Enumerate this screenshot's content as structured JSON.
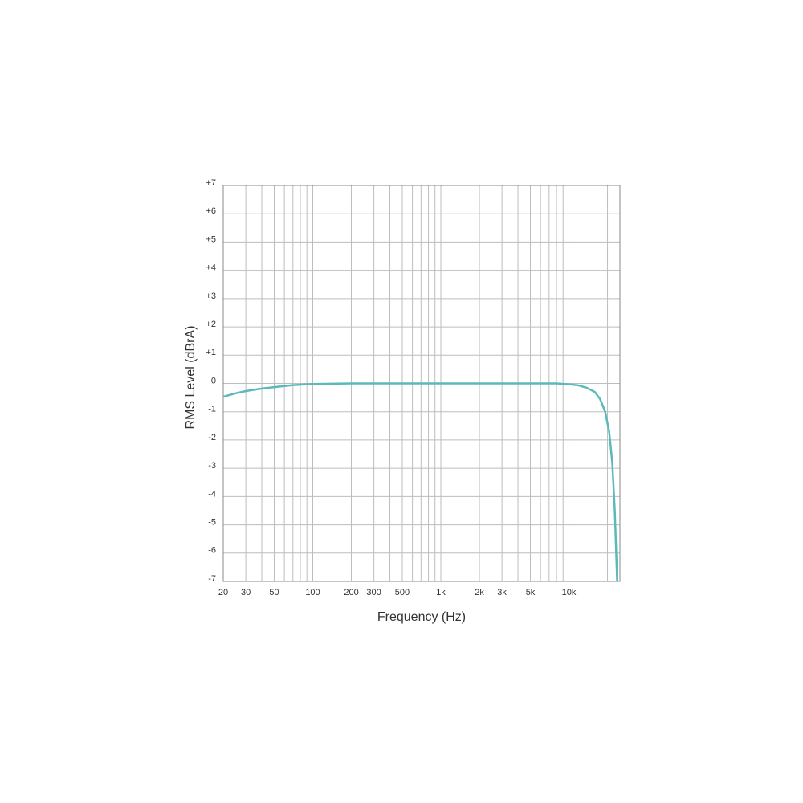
{
  "chart_data": {
    "type": "line",
    "xlabel": "Frequency (Hz)",
    "ylabel": "RMS Level (dBrA)",
    "xscale": "log",
    "xlim": [
      20,
      25000
    ],
    "ylim": [
      -7,
      7
    ],
    "xticks": [
      20,
      30,
      50,
      100,
      200,
      300,
      500,
      {
        "value": 1000,
        "label": "1k"
      },
      {
        "value": 2000,
        "label": "2k"
      },
      {
        "value": 3000,
        "label": "3k"
      },
      {
        "value": 5000,
        "label": "5k"
      },
      {
        "value": 10000,
        "label": "10k"
      }
    ],
    "xgrid": [
      40,
      60,
      70,
      80,
      90,
      400,
      600,
      700,
      800,
      900,
      4000,
      6000,
      7000,
      8000,
      9000,
      20000
    ],
    "yticks": [
      {
        "value": 7,
        "label": "+7"
      },
      {
        "value": 6,
        "label": "+6"
      },
      {
        "value": 5,
        "label": "+5"
      },
      {
        "value": 4,
        "label": "+4"
      },
      {
        "value": 3,
        "label": "+3"
      },
      {
        "value": 2,
        "label": "+2"
      },
      {
        "value": 1,
        "label": "+1"
      },
      0,
      -1,
      -2,
      -3,
      -4,
      -5,
      -6,
      -7
    ],
    "grid": true,
    "color": "#5ab9b9",
    "x": [
      20,
      25,
      30,
      40,
      50,
      70,
      100,
      200,
      500,
      1000,
      5000,
      8000,
      10000,
      11900,
      13700,
      15900,
      17500,
      19200,
      20600,
      21800,
      22800,
      23800
    ],
    "values": [
      -0.47,
      -0.35,
      -0.27,
      -0.18,
      -0.13,
      -0.06,
      -0.02,
      0,
      0,
      0,
      0,
      0,
      -0.03,
      -0.07,
      -0.15,
      -0.3,
      -0.55,
      -1.0,
      -1.7,
      -2.8,
      -4.5,
      -7
    ]
  }
}
